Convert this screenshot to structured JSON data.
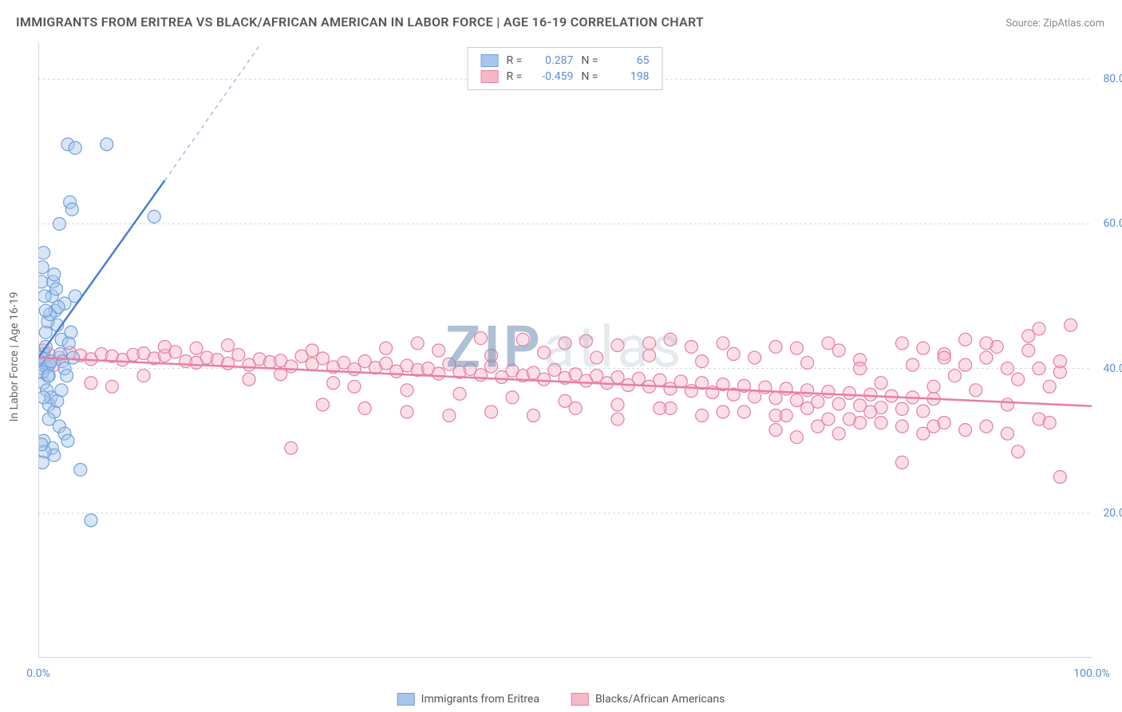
{
  "title": "IMMIGRANTS FROM ERITREA VS BLACK/AFRICAN AMERICAN IN LABOR FORCE | AGE 16-19 CORRELATION CHART",
  "source": "Source: ZipAtlas.com",
  "watermark": "ZIPatlas",
  "y_axis_label": "In Labor Force | Age 16-19",
  "chart": {
    "type": "scatter-correlation",
    "background_color": "#ffffff",
    "grid_color": "#d8d8d8",
    "axis_color": "#c8c8c8",
    "tick_color": "#bbbbbb",
    "font_size_title": 16,
    "font_size_label": 14,
    "font_size_tick": 14,
    "xlim": [
      0,
      100
    ],
    "ylim": [
      0,
      85
    ],
    "x_ticks": [
      0,
      20,
      40,
      60,
      80,
      100
    ],
    "x_tick_labels": [
      "0.0%",
      "",
      "",
      "",
      "",
      "100.0%"
    ],
    "y_ticks": [
      20,
      40,
      60,
      80
    ],
    "y_tick_labels": [
      "20.0%",
      "40.0%",
      "60.0%",
      "80.0%"
    ],
    "marker_radius": 8,
    "marker_opacity": 0.45,
    "line_width_solid": 2.5,
    "line_width_dash": 1.2,
    "series": [
      {
        "name": "Immigrants from Eritrea",
        "color_fill": "#a8c6eb",
        "color_stroke": "#6fa0dc",
        "legend_r": "0.287",
        "legend_n": "65",
        "trend_line": {
          "x1": 0,
          "y1": 41.5,
          "x2": 12,
          "y2": 66,
          "dash_to_x": 26,
          "dash_to_y": 95
        },
        "points": [
          [
            0.2,
            41
          ],
          [
            0.3,
            40.5
          ],
          [
            0.4,
            40
          ],
          [
            0.5,
            42
          ],
          [
            0.6,
            40.8
          ],
          [
            0.7,
            43
          ],
          [
            0.5,
            38
          ],
          [
            0.8,
            40.2
          ],
          [
            0.3,
            41.5
          ],
          [
            0.9,
            39
          ],
          [
            1.0,
            40.5
          ],
          [
            1.2,
            41
          ],
          [
            0.4,
            39.5
          ],
          [
            1.4,
            52
          ],
          [
            1.6,
            48
          ],
          [
            1.8,
            46
          ],
          [
            2.0,
            60
          ],
          [
            2.2,
            44
          ],
          [
            2.5,
            49
          ],
          [
            2.8,
            71
          ],
          [
            3.0,
            63
          ],
          [
            3.2,
            62
          ],
          [
            3.5,
            50
          ],
          [
            3.5,
            70.5
          ],
          [
            1.0,
            35
          ],
          [
            1.2,
            36
          ],
          [
            1.5,
            34
          ],
          [
            1.8,
            35.5
          ],
          [
            2.0,
            32
          ],
          [
            2.2,
            37
          ],
          [
            2.5,
            31
          ],
          [
            2.8,
            30
          ],
          [
            0.8,
            37
          ],
          [
            1.0,
            33
          ],
          [
            1.3,
            29
          ],
          [
            1.5,
            28
          ],
          [
            0.5,
            36
          ],
          [
            0.7,
            45
          ],
          [
            0.9,
            46.5
          ],
          [
            1.1,
            47.5
          ],
          [
            1.3,
            50
          ],
          [
            1.5,
            53
          ],
          [
            1.7,
            51
          ],
          [
            1.9,
            48.5
          ],
          [
            2.1,
            42
          ],
          [
            2.3,
            41
          ],
          [
            2.5,
            40
          ],
          [
            2.7,
            39
          ],
          [
            2.9,
            43.5
          ],
          [
            3.1,
            45
          ],
          [
            3.3,
            41.5
          ],
          [
            0.3,
            52
          ],
          [
            0.4,
            54
          ],
          [
            0.5,
            56
          ],
          [
            0.6,
            50
          ],
          [
            0.7,
            48
          ],
          [
            11,
            61
          ],
          [
            6.5,
            71
          ],
          [
            4,
            26
          ],
          [
            5,
            19
          ],
          [
            0.5,
            30
          ],
          [
            0.6,
            28.5
          ],
          [
            0.4,
            27
          ],
          [
            0.3,
            29.5
          ],
          [
            1.0,
            39
          ]
        ]
      },
      {
        "name": "Blacks/African Americans",
        "color_fill": "#f5b8c7",
        "color_stroke": "#e87ea0",
        "legend_r": "-0.459",
        "legend_n": "198",
        "trend_line": {
          "x1": 0,
          "y1": 41.5,
          "x2": 100,
          "y2": 34.8
        },
        "points": [
          [
            1,
            42
          ],
          [
            2,
            41.5
          ],
          [
            3,
            42.2
          ],
          [
            4,
            41.8
          ],
          [
            5,
            41.3
          ],
          [
            6,
            42
          ],
          [
            7,
            41.7
          ],
          [
            8,
            41.2
          ],
          [
            9,
            41.9
          ],
          [
            10,
            42.1
          ],
          [
            11,
            41.4
          ],
          [
            12,
            41.8
          ],
          [
            13,
            42.3
          ],
          [
            14,
            41
          ],
          [
            15,
            40.8
          ],
          [
            16,
            41.5
          ],
          [
            17,
            41.2
          ],
          [
            18,
            40.7
          ],
          [
            19,
            41.9
          ],
          [
            20,
            40.5
          ],
          [
            21,
            41.3
          ],
          [
            22,
            40.9
          ],
          [
            23,
            41.1
          ],
          [
            24,
            40.3
          ],
          [
            25,
            41.7
          ],
          [
            26,
            40.6
          ],
          [
            27,
            41.4
          ],
          [
            28,
            40.2
          ],
          [
            29,
            40.8
          ],
          [
            30,
            39.9
          ],
          [
            31,
            41.0
          ],
          [
            32,
            40.1
          ],
          [
            33,
            40.7
          ],
          [
            34,
            39.6
          ],
          [
            35,
            40.4
          ],
          [
            36,
            39.8
          ],
          [
            37,
            40.0
          ],
          [
            38,
            39.3
          ],
          [
            39,
            40.6
          ],
          [
            40,
            39.5
          ],
          [
            41,
            39.9
          ],
          [
            42,
            39.1
          ],
          [
            43,
            40.3
          ],
          [
            44,
            38.8
          ],
          [
            45,
            39.7
          ],
          [
            46,
            39.0
          ],
          [
            47,
            39.4
          ],
          [
            48,
            38.5
          ],
          [
            49,
            39.8
          ],
          [
            50,
            38.7
          ],
          [
            51,
            39.2
          ],
          [
            52,
            38.3
          ],
          [
            53,
            39.0
          ],
          [
            54,
            38.0
          ],
          [
            55,
            38.8
          ],
          [
            56,
            37.7
          ],
          [
            57,
            38.6
          ],
          [
            58,
            37.5
          ],
          [
            59,
            38.4
          ],
          [
            60,
            37.2
          ],
          [
            61,
            38.2
          ],
          [
            62,
            36.9
          ],
          [
            63,
            38.0
          ],
          [
            64,
            36.7
          ],
          [
            65,
            37.8
          ],
          [
            66,
            36.4
          ],
          [
            67,
            37.6
          ],
          [
            68,
            36.1
          ],
          [
            69,
            37.4
          ],
          [
            70,
            35.9
          ],
          [
            71,
            37.2
          ],
          [
            72,
            35.6
          ],
          [
            73,
            37.0
          ],
          [
            74,
            35.4
          ],
          [
            75,
            36.8
          ],
          [
            76,
            35.1
          ],
          [
            77,
            36.6
          ],
          [
            78,
            34.9
          ],
          [
            79,
            36.4
          ],
          [
            80,
            34.6
          ],
          [
            81,
            36.2
          ],
          [
            82,
            34.4
          ],
          [
            83,
            36.0
          ],
          [
            84,
            34.1
          ],
          [
            85,
            35.8
          ],
          [
            5,
            38
          ],
          [
            7,
            37.5
          ],
          [
            10,
            39
          ],
          [
            12,
            43
          ],
          [
            15,
            42.8
          ],
          [
            18,
            43.2
          ],
          [
            20,
            38.5
          ],
          [
            23,
            39.2
          ],
          [
            26,
            42.5
          ],
          [
            28,
            38
          ],
          [
            30,
            37.5
          ],
          [
            33,
            42.8
          ],
          [
            35,
            37
          ],
          [
            38,
            42.5
          ],
          [
            40,
            36.5
          ],
          [
            43,
            41.8
          ],
          [
            45,
            36
          ],
          [
            48,
            42.2
          ],
          [
            50,
            35.5
          ],
          [
            53,
            41.5
          ],
          [
            55,
            35
          ],
          [
            58,
            41.8
          ],
          [
            60,
            34.5
          ],
          [
            63,
            41
          ],
          [
            65,
            34
          ],
          [
            68,
            41.5
          ],
          [
            70,
            33.5
          ],
          [
            73,
            40.8
          ],
          [
            75,
            33
          ],
          [
            78,
            41.2
          ],
          [
            80,
            32.5
          ],
          [
            83,
            40.5
          ],
          [
            85,
            32
          ],
          [
            86,
            42
          ],
          [
            87,
            39
          ],
          [
            88,
            40.5
          ],
          [
            89,
            37
          ],
          [
            90,
            41.5
          ],
          [
            91,
            43
          ],
          [
            92,
            35
          ],
          [
            93,
            38.5
          ],
          [
            94,
            42.5
          ],
          [
            95,
            45.5
          ],
          [
            96,
            37.5
          ],
          [
            97,
            39.5
          ],
          [
            98,
            46
          ],
          [
            88,
            44
          ],
          [
            90,
            43.5
          ],
          [
            92,
            40
          ],
          [
            94,
            44.5
          ],
          [
            82,
            43.5
          ],
          [
            84,
            42.8
          ],
          [
            86,
            41.5
          ],
          [
            76,
            42.5
          ],
          [
            78,
            40
          ],
          [
            72,
            42.8
          ],
          [
            66,
            42
          ],
          [
            62,
            43
          ],
          [
            58,
            43.5
          ],
          [
            52,
            43.8
          ],
          [
            46,
            44
          ],
          [
            42,
            44.2
          ],
          [
            36,
            43.5
          ],
          [
            24,
            29
          ],
          [
            82,
            27
          ],
          [
            97,
            25
          ],
          [
            50,
            43.5
          ],
          [
            55,
            43.2
          ],
          [
            60,
            44
          ],
          [
            65,
            43.5
          ],
          [
            70,
            43
          ],
          [
            75,
            43.5
          ],
          [
            80,
            38
          ],
          [
            85,
            37.5
          ],
          [
            88,
            31.5
          ],
          [
            90,
            32
          ],
          [
            92,
            31
          ],
          [
            95,
            33
          ],
          [
            96,
            32.5
          ],
          [
            82,
            32
          ],
          [
            78,
            32.5
          ],
          [
            74,
            32
          ],
          [
            70,
            31.5
          ],
          [
            72,
            30.5
          ],
          [
            76,
            31
          ],
          [
            93,
            28.5
          ],
          [
            95,
            40
          ],
          [
            97,
            41
          ],
          [
            86,
            32.5
          ],
          [
            84,
            31
          ],
          [
            79,
            34
          ],
          [
            77,
            33
          ],
          [
            73,
            34.5
          ],
          [
            71,
            33.5
          ],
          [
            67,
            34
          ],
          [
            63,
            33.5
          ],
          [
            59,
            34.5
          ],
          [
            55,
            33
          ],
          [
            51,
            34.5
          ],
          [
            47,
            33.5
          ],
          [
            43,
            34
          ],
          [
            39,
            33.5
          ],
          [
            35,
            34
          ],
          [
            31,
            34.5
          ],
          [
            27,
            35
          ],
          [
            0.5,
            42.5
          ],
          [
            1.5,
            40.5
          ]
        ]
      }
    ]
  },
  "bottom_legend": [
    {
      "label": "Immigrants from Eritrea",
      "fill": "#a8c6eb",
      "stroke": "#6fa0dc"
    },
    {
      "label": "Blacks/African Americans",
      "fill": "#f5b8c7",
      "stroke": "#e87ea0"
    }
  ]
}
